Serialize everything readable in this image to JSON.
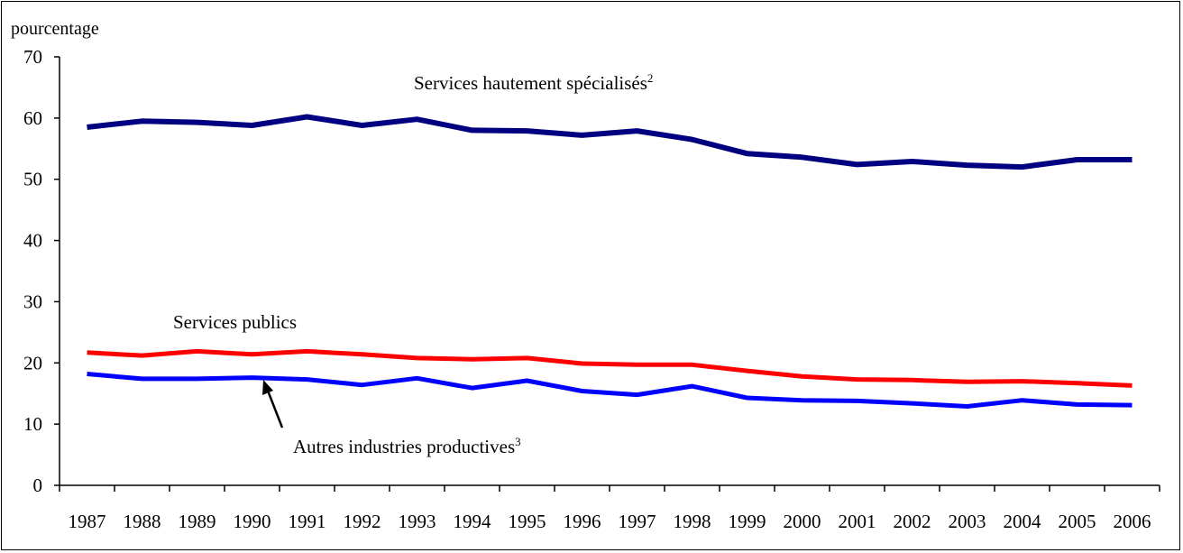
{
  "chart_data": {
    "type": "line",
    "ylabel": "pourcentage",
    "ylim": [
      0,
      70
    ],
    "yticks": [
      0,
      10,
      20,
      30,
      40,
      50,
      60,
      70
    ],
    "categories": [
      "1987",
      "1988",
      "1989",
      "1990",
      "1991",
      "1992",
      "1993",
      "1994",
      "1995",
      "1996",
      "1997",
      "1998",
      "1999",
      "2000",
      "2001",
      "2002",
      "2003",
      "2004",
      "2005",
      "2006"
    ],
    "grid": false,
    "series": [
      {
        "name": "Services hautement spécialisés",
        "footnote": "2",
        "color": "#000080",
        "values": [
          58.5,
          59.5,
          59.3,
          58.8,
          60.2,
          58.8,
          59.8,
          58.0,
          57.9,
          57.2,
          57.9,
          56.5,
          54.2,
          53.6,
          52.4,
          52.9,
          52.3,
          52.0,
          53.2,
          53.2
        ]
      },
      {
        "name": "Services publics",
        "footnote": "",
        "color": "#ff0000",
        "values": [
          21.7,
          21.2,
          21.9,
          21.4,
          21.9,
          21.4,
          20.8,
          20.6,
          20.8,
          19.9,
          19.7,
          19.7,
          18.7,
          17.8,
          17.3,
          17.2,
          16.9,
          17.0,
          16.7,
          16.3
        ]
      },
      {
        "name": "Autres industries productives",
        "footnote": "3",
        "color": "#0000ff",
        "values": [
          18.2,
          17.4,
          17.4,
          17.6,
          17.3,
          16.4,
          17.5,
          15.9,
          17.1,
          15.4,
          14.8,
          16.2,
          14.3,
          13.9,
          13.8,
          13.4,
          12.9,
          13.9,
          13.2,
          13.1
        ]
      }
    ]
  }
}
